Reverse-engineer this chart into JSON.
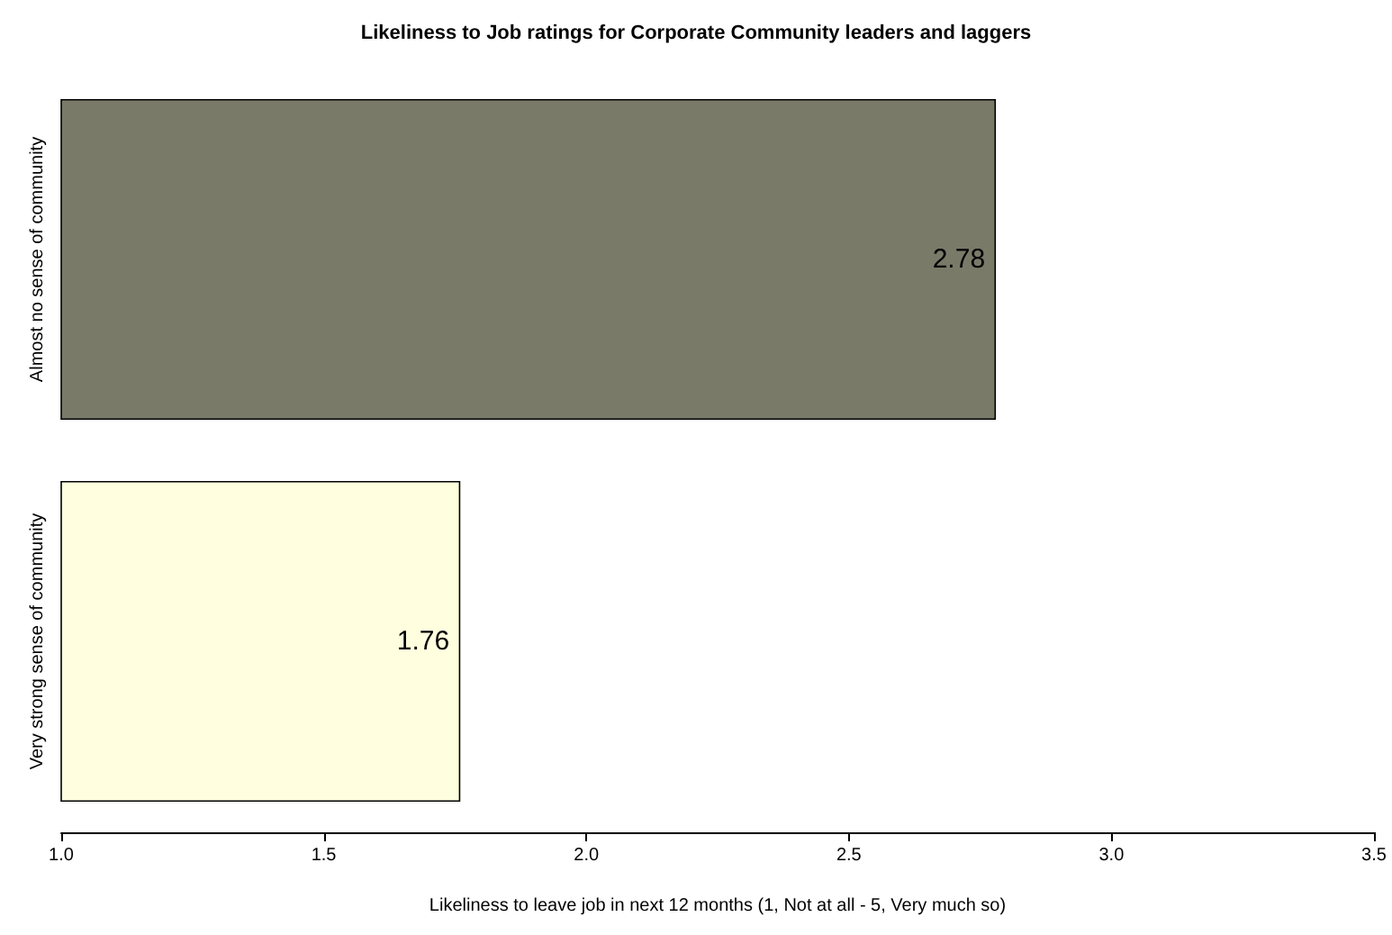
{
  "chart_data": {
    "type": "bar",
    "orientation": "horizontal",
    "title": "Likeliness to Job ratings for Corporate Community leaders and laggers",
    "xlabel": "Likeliness to leave job in next 12 months (1, Not at all - 5, Very much so)",
    "categories": [
      "Almost no sense of community",
      "Very strong sense of community"
    ],
    "values": [
      2.78,
      1.76
    ],
    "colors": [
      "#797a68",
      "#ffffdf"
    ],
    "xlim": [
      1,
      3.5
    ],
    "xticks": [
      {
        "value": 1,
        "label": "1.0"
      },
      {
        "value": 1.5,
        "label": "1.5"
      },
      {
        "value": 2,
        "label": "2.0"
      },
      {
        "value": 2.5,
        "label": "2.5"
      },
      {
        "value": 3,
        "label": "3.0"
      },
      {
        "value": 3.5,
        "label": "3.5"
      }
    ],
    "data_labels": true,
    "grid": false
  }
}
